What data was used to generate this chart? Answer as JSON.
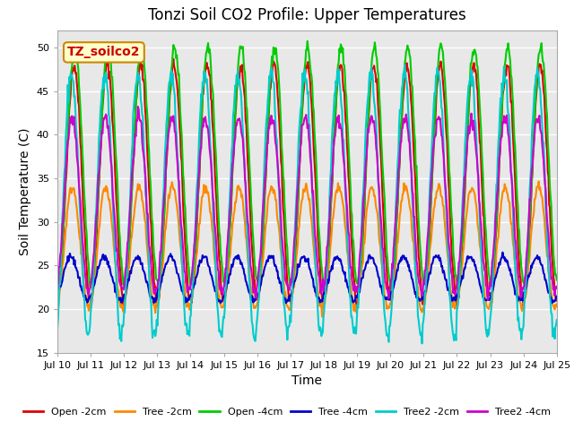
{
  "title": "Tonzi Soil CO2 Profile: Upper Temperatures",
  "xlabel": "Time",
  "ylabel": "Soil Temperature (C)",
  "ylim": [
    15,
    52
  ],
  "yticks": [
    15,
    20,
    25,
    30,
    35,
    40,
    45,
    50
  ],
  "x_labels": [
    "Jul 10",
    "Jul 11",
    "Jul 12",
    "Jul 13",
    "Jul 14",
    "Jul 15",
    "Jul 16",
    "Jul 17",
    "Jul 18",
    "Jul 19",
    "Jul 20",
    "Jul 21",
    "Jul 22",
    "Jul 23",
    "Jul 24",
    "Jul 25"
  ],
  "annotation_text": "TZ_soilco2",
  "annotation_color": "#cc0000",
  "annotation_bg": "#ffffcc",
  "annotation_border": "#cc8800",
  "series": [
    {
      "label": "Open -2cm",
      "color": "#dd0000",
      "linewidth": 1.5
    },
    {
      "label": "Tree -2cm",
      "color": "#ff8800",
      "linewidth": 1.5
    },
    {
      "label": "Open -4cm",
      "color": "#00cc00",
      "linewidth": 1.5
    },
    {
      "label": "Tree -4cm",
      "color": "#0000cc",
      "linewidth": 1.5
    },
    {
      "label": "Tree2 -2cm",
      "color": "#00cccc",
      "linewidth": 1.5
    },
    {
      "label": "Tree2 -4cm",
      "color": "#cc00cc",
      "linewidth": 1.5
    }
  ],
  "bg_color": "#ffffff",
  "plot_bg_color": "#e8e8e8",
  "grid_color": "#ffffff",
  "n_days": 15,
  "pts_per_day": 48
}
